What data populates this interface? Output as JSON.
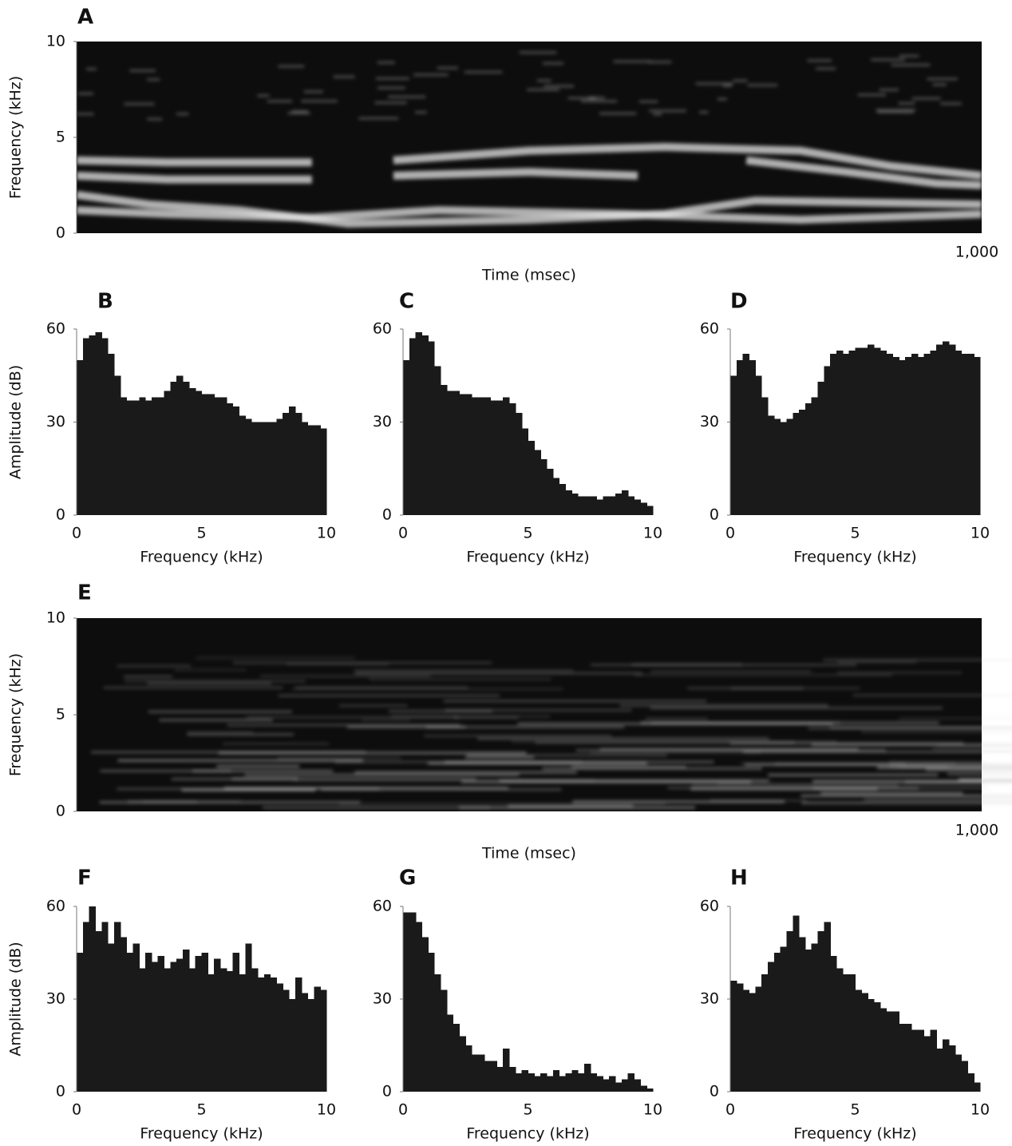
{
  "chart_data": [
    {
      "type": "spectrogram",
      "panel": "A",
      "ylabel": "Frequency (kHz)",
      "xlabel": "Time (msec)",
      "xlim": [
        0,
        1000
      ],
      "xticks": [
        {
          "value": 1000,
          "label": "1,000"
        }
      ],
      "ylim": [
        0,
        10
      ],
      "yticks": [
        0,
        5,
        10
      ]
    },
    {
      "type": "histogram",
      "panel": "B",
      "ylabel": "Amplitude (dB)",
      "xlabel": "Frequency (kHz)",
      "color": "#1a1a1a",
      "xlim": [
        0,
        10
      ],
      "xticks": [
        0,
        5,
        10
      ],
      "ylim": [
        0,
        60
      ],
      "yticks": [
        0,
        30,
        60
      ],
      "bins": [
        0,
        0.25,
        0.5,
        0.75,
        1,
        1.25,
        1.5,
        1.75,
        2,
        2.25,
        2.5,
        2.75,
        3,
        3.25,
        3.5,
        3.75,
        4,
        4.25,
        4.5,
        4.75,
        5,
        5.25,
        5.5,
        5.75,
        6,
        6.25,
        6.5,
        6.75,
        7,
        7.25,
        7.5,
        7.75,
        8,
        8.25,
        8.5,
        8.75,
        9,
        9.25,
        9.5,
        9.75,
        10
      ],
      "values": [
        50,
        57,
        58,
        59,
        57,
        52,
        45,
        38,
        37,
        37,
        38,
        37,
        38,
        38,
        40,
        43,
        45,
        43,
        41,
        40,
        39,
        39,
        38,
        38,
        36,
        35,
        32,
        31,
        30,
        30,
        30,
        30,
        31,
        33,
        35,
        33,
        30,
        29,
        29,
        28
      ]
    },
    {
      "type": "histogram",
      "panel": "C",
      "xlabel": "Frequency (kHz)",
      "color": "#1a1a1a",
      "xlim": [
        0,
        10
      ],
      "xticks": [
        0,
        5,
        10
      ],
      "ylim": [
        0,
        60
      ],
      "yticks": [
        0,
        30,
        60
      ],
      "bins": [
        0,
        0.25,
        0.5,
        0.75,
        1,
        1.25,
        1.5,
        1.75,
        2,
        2.25,
        2.5,
        2.75,
        3,
        3.25,
        3.5,
        3.75,
        4,
        4.25,
        4.5,
        4.75,
        5,
        5.25,
        5.5,
        5.75,
        6,
        6.25,
        6.5,
        6.75,
        7,
        7.25,
        7.5,
        7.75,
        8,
        8.25,
        8.5,
        8.75,
        9,
        9.25,
        9.5,
        9.75,
        10
      ],
      "values": [
        50,
        57,
        59,
        58,
        56,
        48,
        42,
        40,
        40,
        39,
        39,
        38,
        38,
        38,
        37,
        37,
        38,
        36,
        33,
        28,
        24,
        21,
        18,
        15,
        12,
        10,
        8,
        7,
        6,
        6,
        6,
        5,
        6,
        6,
        7,
        8,
        6,
        5,
        4,
        3
      ]
    },
    {
      "type": "histogram",
      "panel": "D",
      "xlabel": "Frequency (kHz)",
      "color": "#1a1a1a",
      "xlim": [
        0,
        10
      ],
      "xticks": [
        0,
        5,
        10
      ],
      "ylim": [
        0,
        60
      ],
      "yticks": [
        0,
        30,
        60
      ],
      "bins": [
        0,
        0.25,
        0.5,
        0.75,
        1,
        1.25,
        1.5,
        1.75,
        2,
        2.25,
        2.5,
        2.75,
        3,
        3.25,
        3.5,
        3.75,
        4,
        4.25,
        4.5,
        4.75,
        5,
        5.25,
        5.5,
        5.75,
        6,
        6.25,
        6.5,
        6.75,
        7,
        7.25,
        7.5,
        7.75,
        8,
        8.25,
        8.5,
        8.75,
        9,
        9.25,
        9.5,
        9.75,
        10
      ],
      "values": [
        45,
        50,
        52,
        50,
        45,
        38,
        32,
        31,
        30,
        31,
        33,
        34,
        36,
        38,
        43,
        48,
        52,
        53,
        52,
        53,
        54,
        54,
        55,
        54,
        53,
        52,
        51,
        50,
        51,
        52,
        51,
        52,
        53,
        55,
        56,
        55,
        53,
        52,
        52,
        51
      ]
    },
    {
      "type": "spectrogram",
      "panel": "E",
      "ylabel": "Frequency (kHz)",
      "xlabel": "Time (msec)",
      "xlim": [
        0,
        1000
      ],
      "xticks": [
        {
          "value": 1000,
          "label": "1,000"
        }
      ],
      "ylim": [
        0,
        10
      ],
      "yticks": [
        0,
        5,
        10
      ]
    },
    {
      "type": "histogram",
      "panel": "F",
      "ylabel": "Amplitude (dB)",
      "xlabel": "Frequency (kHz)",
      "color": "#1a1a1a",
      "xlim": [
        0,
        10
      ],
      "xticks": [
        0,
        5,
        10
      ],
      "ylim": [
        0,
        60
      ],
      "yticks": [
        0,
        30,
        60
      ],
      "bins": [
        0,
        0.25,
        0.5,
        0.75,
        1,
        1.25,
        1.5,
        1.75,
        2,
        2.25,
        2.5,
        2.75,
        3,
        3.25,
        3.5,
        3.75,
        4,
        4.25,
        4.5,
        4.75,
        5,
        5.25,
        5.5,
        5.75,
        6,
        6.25,
        6.5,
        6.75,
        7,
        7.25,
        7.5,
        7.75,
        8,
        8.25,
        8.5,
        8.75,
        9,
        9.25,
        9.5,
        9.75,
        10
      ],
      "values": [
        45,
        55,
        60,
        52,
        55,
        48,
        55,
        50,
        45,
        48,
        40,
        45,
        42,
        44,
        40,
        42,
        43,
        46,
        40,
        44,
        45,
        38,
        43,
        40,
        39,
        45,
        38,
        48,
        40,
        37,
        38,
        37,
        35,
        33,
        30,
        37,
        32,
        30,
        34,
        33
      ]
    },
    {
      "type": "histogram",
      "panel": "G",
      "xlabel": "Frequency (kHz)",
      "color": "#1a1a1a",
      "xlim": [
        0,
        10
      ],
      "xticks": [
        0,
        5,
        10
      ],
      "ylim": [
        0,
        60
      ],
      "yticks": [
        0,
        30,
        60
      ],
      "bins": [
        0,
        0.25,
        0.5,
        0.75,
        1,
        1.25,
        1.5,
        1.75,
        2,
        2.25,
        2.5,
        2.75,
        3,
        3.25,
        3.5,
        3.75,
        4,
        4.25,
        4.5,
        4.75,
        5,
        5.25,
        5.5,
        5.75,
        6,
        6.25,
        6.5,
        6.75,
        7,
        7.25,
        7.5,
        7.75,
        8,
        8.25,
        8.5,
        8.75,
        9,
        9.25,
        9.5,
        9.75,
        10
      ],
      "values": [
        58,
        58,
        55,
        50,
        45,
        38,
        33,
        25,
        22,
        18,
        15,
        12,
        12,
        10,
        10,
        8,
        14,
        8,
        6,
        7,
        6,
        5,
        6,
        5,
        7,
        5,
        6,
        7,
        6,
        9,
        6,
        5,
        4,
        5,
        3,
        4,
        6,
        4,
        2,
        1
      ]
    },
    {
      "type": "histogram",
      "panel": "H",
      "xlabel": "Frequency (kHz)",
      "color": "#1a1a1a",
      "xlim": [
        0,
        10
      ],
      "xticks": [
        0,
        5,
        10
      ],
      "ylim": [
        0,
        60
      ],
      "yticks": [
        0,
        30,
        60
      ],
      "bins": [
        0,
        0.25,
        0.5,
        0.75,
        1,
        1.25,
        1.5,
        1.75,
        2,
        2.25,
        2.5,
        2.75,
        3,
        3.25,
        3.5,
        3.75,
        4,
        4.25,
        4.5,
        4.75,
        5,
        5.25,
        5.5,
        5.75,
        6,
        6.25,
        6.5,
        6.75,
        7,
        7.25,
        7.5,
        7.75,
        8,
        8.25,
        8.5,
        8.75,
        9,
        9.25,
        9.5,
        9.75,
        10
      ],
      "values": [
        36,
        35,
        33,
        32,
        34,
        38,
        42,
        45,
        47,
        52,
        57,
        50,
        46,
        48,
        52,
        55,
        44,
        40,
        38,
        38,
        33,
        32,
        30,
        29,
        27,
        26,
        26,
        22,
        22,
        20,
        20,
        18,
        20,
        14,
        17,
        15,
        12,
        10,
        6,
        3
      ]
    }
  ]
}
